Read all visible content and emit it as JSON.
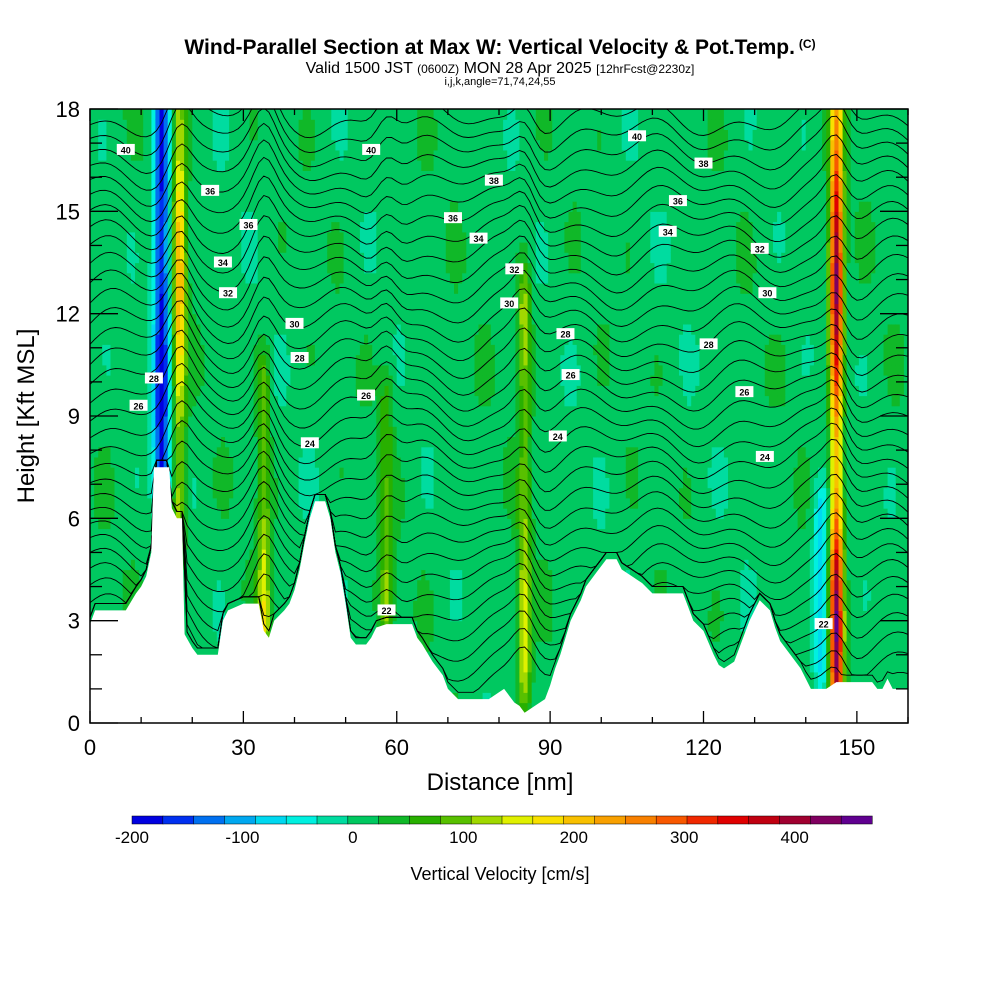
{
  "chart_data": {
    "type": "heatmap",
    "title": "Wind-Parallel Section at Max W: Vertical Velocity & Pot.Temp.",
    "copyright": "(C)",
    "subtitle_main": "Valid 1500 JST",
    "subtitle_z": "(0600Z)",
    "subtitle_date": "MON 28 Apr 2025",
    "subtitle_fcst": "[12hrFcst@2230z]",
    "subtitle_indices": "i,j,k,angle=71,74,24,55",
    "xlabel": "Distance [nm]",
    "ylabel": "Height [Kft MSL]",
    "xlim": [
      0,
      160
    ],
    "ylim": [
      0,
      18
    ],
    "x_ticks": [
      0,
      30,
      60,
      90,
      120,
      150
    ],
    "y_ticks": [
      0,
      3,
      6,
      9,
      12,
      15,
      18
    ],
    "colorbar": {
      "label": "Vertical Velocity [cm/s]",
      "range": [
        -200,
        470
      ],
      "ticks": [
        -200,
        -100,
        0,
        100,
        200,
        300,
        400
      ],
      "colors": [
        "#0000e0",
        "#0030f0",
        "#0070f0",
        "#00a8f0",
        "#00d8f0",
        "#00f0e0",
        "#00dca0",
        "#00c860",
        "#10b828",
        "#28b000",
        "#58c000",
        "#a0d800",
        "#e0f000",
        "#f8e000",
        "#f8c000",
        "#f8a000",
        "#f88000",
        "#f85800",
        "#f02800",
        "#e00000",
        "#c00010",
        "#a00030",
        "#800060",
        "#600090"
      ]
    },
    "updrafts": [
      {
        "x": 17.5,
        "peak": 210,
        "height_range": [
          6.5,
          18
        ]
      },
      {
        "x": 34,
        "peak": 150,
        "height_range": [
          3,
          9.5
        ]
      },
      {
        "x": 58,
        "peak": 110,
        "height_range": [
          3.5,
          9
        ]
      },
      {
        "x": 85,
        "peak": 140,
        "height_range": [
          1.5,
          12
        ]
      },
      {
        "x": 146,
        "peak": 420,
        "height_range": [
          1,
          18
        ]
      }
    ],
    "downdrafts": [
      {
        "x": 14,
        "peak": -190,
        "height_range": [
          7.5,
          18
        ]
      },
      {
        "x": 143,
        "peak": -90,
        "height_range": [
          2,
          6
        ]
      }
    ],
    "theta_labels": [
      {
        "x": 7,
        "y": 16.8,
        "text": "40"
      },
      {
        "x": 55,
        "y": 16.8,
        "text": "40"
      },
      {
        "x": 107,
        "y": 17.2,
        "text": "40"
      },
      {
        "x": 120,
        "y": 16.4,
        "text": "38"
      },
      {
        "x": 23.5,
        "y": 15.6,
        "text": "36"
      },
      {
        "x": 79,
        "y": 15.9,
        "text": "38"
      },
      {
        "x": 115,
        "y": 15.3,
        "text": "36"
      },
      {
        "x": 31,
        "y": 14.6,
        "text": "36"
      },
      {
        "x": 71,
        "y": 14.8,
        "text": "36"
      },
      {
        "x": 113,
        "y": 14.4,
        "text": "34"
      },
      {
        "x": 76,
        "y": 14.2,
        "text": "34"
      },
      {
        "x": 131,
        "y": 13.9,
        "text": "32"
      },
      {
        "x": 26,
        "y": 13.5,
        "text": "34"
      },
      {
        "x": 83,
        "y": 13.3,
        "text": "32"
      },
      {
        "x": 27,
        "y": 12.6,
        "text": "32"
      },
      {
        "x": 132.5,
        "y": 12.6,
        "text": "30"
      },
      {
        "x": 82,
        "y": 12.3,
        "text": "30"
      },
      {
        "x": 40,
        "y": 11.7,
        "text": "30"
      },
      {
        "x": 93,
        "y": 11.4,
        "text": "28"
      },
      {
        "x": 121,
        "y": 11.1,
        "text": "28"
      },
      {
        "x": 41,
        "y": 10.7,
        "text": "28"
      },
      {
        "x": 94,
        "y": 10.2,
        "text": "26"
      },
      {
        "x": 12.5,
        "y": 10.1,
        "text": "28"
      },
      {
        "x": 54,
        "y": 9.6,
        "text": "26"
      },
      {
        "x": 128,
        "y": 9.7,
        "text": "26"
      },
      {
        "x": 9.5,
        "y": 9.3,
        "text": "26"
      },
      {
        "x": 91.5,
        "y": 8.4,
        "text": "24"
      },
      {
        "x": 43,
        "y": 8.2,
        "text": "24"
      },
      {
        "x": 132,
        "y": 7.8,
        "text": "24"
      },
      {
        "x": 58,
        "y": 3.3,
        "text": "22"
      },
      {
        "x": 143.5,
        "y": 2.9,
        "text": "22"
      }
    ],
    "terrain": [
      [
        0,
        2.9
      ],
      [
        1,
        3.3
      ],
      [
        7,
        3.3
      ],
      [
        9,
        3.8
      ],
      [
        10,
        4.0
      ],
      [
        11,
        4.3
      ],
      [
        12,
        5.0
      ],
      [
        12.5,
        7.5
      ],
      [
        15.5,
        7.5
      ],
      [
        16,
        6.3
      ],
      [
        17,
        6.0
      ],
      [
        18,
        6.0
      ],
      [
        18.5,
        2.6
      ],
      [
        20,
        2.2
      ],
      [
        21,
        2.0
      ],
      [
        25,
        2.0
      ],
      [
        26,
        3.0
      ],
      [
        27,
        3.3
      ],
      [
        30,
        3.5
      ],
      [
        33,
        3.5
      ],
      [
        34,
        2.7
      ],
      [
        35,
        2.5
      ],
      [
        36,
        3.0
      ],
      [
        38,
        3.3
      ],
      [
        39,
        3.5
      ],
      [
        40,
        3.9
      ],
      [
        41,
        4.5
      ],
      [
        42,
        5.3
      ],
      [
        43,
        6.0
      ],
      [
        44,
        6.5
      ],
      [
        46,
        6.5
      ],
      [
        47,
        6.0
      ],
      [
        48,
        5.0
      ],
      [
        49,
        4.4
      ],
      [
        50,
        3.5
      ],
      [
        51,
        2.5
      ],
      [
        52,
        2.3
      ],
      [
        54,
        2.3
      ],
      [
        55,
        2.5
      ],
      [
        56,
        2.8
      ],
      [
        58,
        2.9
      ],
      [
        63,
        2.9
      ],
      [
        64,
        2.5
      ],
      [
        65,
        2.3
      ],
      [
        67,
        1.8
      ],
      [
        69,
        1.4
      ],
      [
        70,
        1.0
      ],
      [
        72,
        0.7
      ],
      [
        78,
        0.7
      ],
      [
        80,
        0.9
      ],
      [
        81,
        1.0
      ],
      [
        82,
        0.8
      ],
      [
        83,
        0.6
      ],
      [
        84,
        0.5
      ],
      [
        85,
        0.3
      ],
      [
        87,
        0.5
      ],
      [
        89,
        0.7
      ],
      [
        90,
        1.1
      ],
      [
        91,
        1.6
      ],
      [
        92,
        2.0
      ],
      [
        93,
        2.5
      ],
      [
        94,
        3.0
      ],
      [
        95,
        3.3
      ],
      [
        96,
        3.6
      ],
      [
        97,
        4.0
      ],
      [
        99,
        4.4
      ],
      [
        101,
        4.8
      ],
      [
        103,
        4.8
      ],
      [
        104,
        4.5
      ],
      [
        106,
        4.3
      ],
      [
        108,
        4.1
      ],
      [
        110,
        3.8
      ],
      [
        116,
        3.8
      ],
      [
        117,
        3.4
      ],
      [
        118,
        3.0
      ],
      [
        120,
        2.7
      ],
      [
        122,
        2.0
      ],
      [
        123,
        1.7
      ],
      [
        124,
        1.6
      ],
      [
        126,
        1.8
      ],
      [
        127,
        2.2
      ],
      [
        129,
        3.0
      ],
      [
        131,
        3.6
      ],
      [
        133,
        3.3
      ],
      [
        134,
        2.8
      ],
      [
        135,
        2.4
      ],
      [
        137,
        2.0
      ],
      [
        139,
        1.6
      ],
      [
        140,
        1.3
      ],
      [
        141,
        1.0
      ],
      [
        144,
        1.0
      ],
      [
        146,
        1.2
      ],
      [
        148,
        1.2
      ],
      [
        153,
        1.2
      ],
      [
        154,
        1.0
      ],
      [
        155,
        1.0
      ],
      [
        156,
        1.3
      ],
      [
        157,
        1.0
      ],
      [
        160,
        1.0
      ]
    ]
  }
}
